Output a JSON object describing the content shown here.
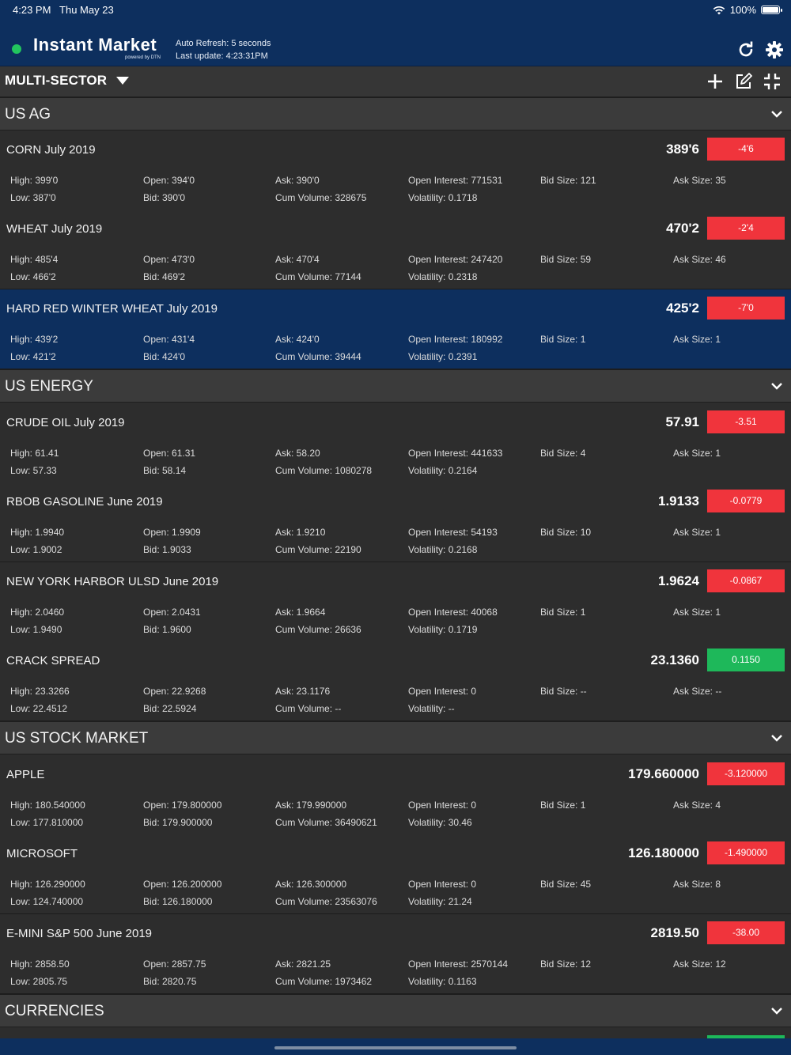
{
  "status_bar": {
    "time": "4:23 PM",
    "date": "Thu May 23",
    "battery": "100%"
  },
  "header": {
    "app_name": "Instant Market",
    "powered_by": "powered by DTN",
    "auto_refresh": "Auto Refresh: 5 seconds",
    "last_update": "Last update: 4:23:31PM",
    "status_dot_color": "#22c55e",
    "icons": [
      "refresh-icon",
      "gear-icon"
    ]
  },
  "toolbar": {
    "sector": "MULTI-SECTOR",
    "icons": [
      "add-icon",
      "edit-icon",
      "collapse-icon"
    ]
  },
  "sections": [
    {
      "title": "US AG",
      "items": [
        {
          "name": "CORN July 2019",
          "price": "389'6",
          "change": "-4'6",
          "dir": "neg",
          "selected": false,
          "high": "High: 399'0",
          "low": "Low: 387'0",
          "open": "Open: 394'0",
          "bid": "Bid: 390'0",
          "ask": "Ask: 390'0",
          "cum_volume": "Cum Volume: 328675",
          "open_interest": "Open Interest: 771531",
          "volatility": "Volatility: 0.1718",
          "bid_size": "Bid Size: 121",
          "ask_size": "Ask Size: 35"
        },
        {
          "name": "WHEAT July 2019",
          "price": "470'2",
          "change": "-2'4",
          "dir": "neg",
          "selected": false,
          "high": "High: 485'4",
          "low": "Low: 466'2",
          "open": "Open: 473'0",
          "bid": "Bid: 469'2",
          "ask": "Ask: 470'4",
          "cum_volume": "Cum Volume: 77144",
          "open_interest": "Open Interest: 247420",
          "volatility": "Volatility: 0.2318",
          "bid_size": "Bid Size: 59",
          "ask_size": "Ask Size: 46"
        },
        {
          "name": "HARD RED WINTER WHEAT July 2019",
          "price": "425'2",
          "change": "-7'0",
          "dir": "neg",
          "selected": true,
          "high": "High: 439'2",
          "low": "Low: 421'2",
          "open": "Open: 431'4",
          "bid": "Bid: 424'0",
          "ask": "Ask: 424'0",
          "cum_volume": "Cum Volume: 39444",
          "open_interest": "Open Interest: 180992",
          "volatility": "Volatility: 0.2391",
          "bid_size": "Bid Size: 1",
          "ask_size": "Ask Size: 1"
        }
      ]
    },
    {
      "title": "US ENERGY",
      "items": [
        {
          "name": "CRUDE OIL July 2019",
          "price": "57.91",
          "change": "-3.51",
          "dir": "neg",
          "selected": false,
          "high": "High: 61.41",
          "low": "Low: 57.33",
          "open": "Open: 61.31",
          "bid": "Bid: 58.14",
          "ask": "Ask: 58.20",
          "cum_volume": "Cum Volume: 1080278",
          "open_interest": "Open Interest: 441633",
          "volatility": "Volatility: 0.2164",
          "bid_size": "Bid Size: 4",
          "ask_size": "Ask Size: 1"
        },
        {
          "name": "RBOB GASOLINE June 2019",
          "price": "1.9133",
          "change": "-0.0779",
          "dir": "neg",
          "selected": false,
          "high": "High: 1.9940",
          "low": "Low: 1.9002",
          "open": "Open: 1.9909",
          "bid": "Bid: 1.9033",
          "ask": "Ask: 1.9210",
          "cum_volume": "Cum Volume: 22190",
          "open_interest": "Open Interest: 54193",
          "volatility": "Volatility: 0.2168",
          "bid_size": "Bid Size: 10",
          "ask_size": "Ask Size: 1"
        },
        {
          "name": "NEW YORK HARBOR ULSD June 2019",
          "price": "1.9624",
          "change": "-0.0867",
          "dir": "neg",
          "selected": false,
          "high": "High: 2.0460",
          "low": "Low: 1.9490",
          "open": "Open: 2.0431",
          "bid": "Bid: 1.9600",
          "ask": "Ask: 1.9664",
          "cum_volume": "Cum Volume: 26636",
          "open_interest": "Open Interest: 40068",
          "volatility": "Volatility: 0.1719",
          "bid_size": "Bid Size: 1",
          "ask_size": "Ask Size: 1"
        },
        {
          "name": "CRACK SPREAD",
          "price": "23.1360",
          "change": "0.1150",
          "dir": "pos",
          "selected": false,
          "high": "High: 23.3266",
          "low": "Low: 22.4512",
          "open": "Open: 22.9268",
          "bid": "Bid: 22.5924",
          "ask": "Ask: 23.1176",
          "cum_volume": "Cum Volume: --",
          "open_interest": "Open Interest: 0",
          "volatility": "Volatility: --",
          "bid_size": "Bid Size: --",
          "ask_size": "Ask Size: --"
        }
      ]
    },
    {
      "title": "US STOCK MARKET",
      "items": [
        {
          "name": "APPLE",
          "price": "179.660000",
          "change": "-3.120000",
          "dir": "neg",
          "selected": false,
          "high": "High: 180.540000",
          "low": "Low: 177.810000",
          "open": "Open: 179.800000",
          "bid": "Bid: 179.900000",
          "ask": "Ask: 179.990000",
          "cum_volume": "Cum Volume: 36490621",
          "open_interest": "Open Interest: 0",
          "volatility": "Volatility: 30.46",
          "bid_size": "Bid Size: 1",
          "ask_size": "Ask Size: 4"
        },
        {
          "name": "MICROSOFT",
          "price": "126.180000",
          "change": "-1.490000",
          "dir": "neg",
          "selected": false,
          "high": "High: 126.290000",
          "low": "Low: 124.740000",
          "open": "Open: 126.200000",
          "bid": "Bid: 126.180000",
          "ask": "Ask: 126.300000",
          "cum_volume": "Cum Volume: 23563076",
          "open_interest": "Open Interest: 0",
          "volatility": "Volatility: 21.24",
          "bid_size": "Bid Size: 45",
          "ask_size": "Ask Size: 8"
        },
        {
          "name": "E-MINI S&P 500 June 2019",
          "price": "2819.50",
          "change": "-38.00",
          "dir": "neg",
          "selected": false,
          "high": "High: 2858.50",
          "low": "Low: 2805.75",
          "open": "Open: 2857.75",
          "bid": "Bid: 2820.75",
          "ask": "Ask: 2821.25",
          "cum_volume": "Cum Volume: 1973462",
          "open_interest": "Open Interest: 2570144",
          "volatility": "Volatility: 0.1163",
          "bid_size": "Bid Size: 12",
          "ask_size": "Ask Size: 12"
        }
      ]
    },
    {
      "title": "CURRENCIES",
      "items": []
    }
  ],
  "colors": {
    "header_bg": "#0d2f5e",
    "negative": "#f0343c",
    "positive": "#1eb85a",
    "selected_row": "#0d2f5e"
  }
}
